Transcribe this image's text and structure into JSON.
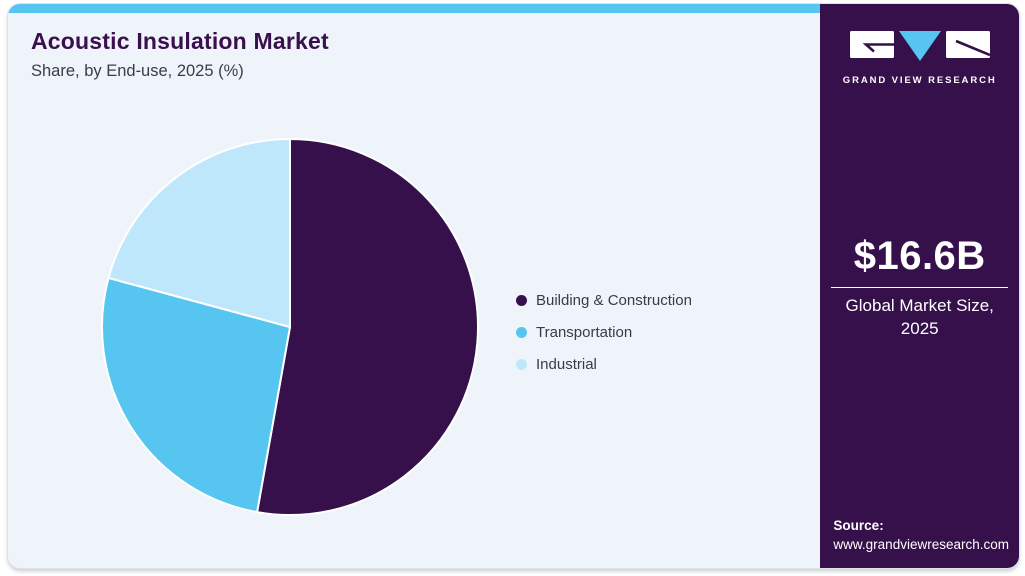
{
  "header": {
    "title": "Acoustic Insulation Market",
    "subtitle": "Share, by End-use, 2025 (%)"
  },
  "chart_data": {
    "type": "pie",
    "title": "Acoustic Insulation Market Share, by End-use, 2025 (%)",
    "categories": [
      "Building & Construction",
      "Transportation",
      "Industrial"
    ],
    "values": [
      52.8,
      26.4,
      20.8
    ],
    "colors": [
      "#36104a",
      "#56c5f0",
      "#bfe7fb"
    ],
    "unit": "%",
    "start_angle_deg": 0,
    "direction": "clockwise",
    "legend_position": "right",
    "slice_border_color": "#ffffff"
  },
  "legend": {
    "items": [
      {
        "label": "Building & Construction",
        "color": "#36104a"
      },
      {
        "label": "Transportation",
        "color": "#56c5f0"
      },
      {
        "label": "Industrial",
        "color": "#bfe7fb"
      }
    ]
  },
  "sidebar": {
    "logo_icon": "gvr-logo",
    "brand": "GRAND VIEW RESEARCH",
    "market_size_value": "$16.6B",
    "market_size_label": "Global Market Size, 2025",
    "source_label": "Source:",
    "source_url": "www.grandviewresearch.com",
    "background": "#36104a"
  },
  "colors": {
    "accent_bar": "#56c5f0",
    "card_background": "#eff4fa",
    "title": "#3a0f4d",
    "text": "#3c3c45"
  }
}
